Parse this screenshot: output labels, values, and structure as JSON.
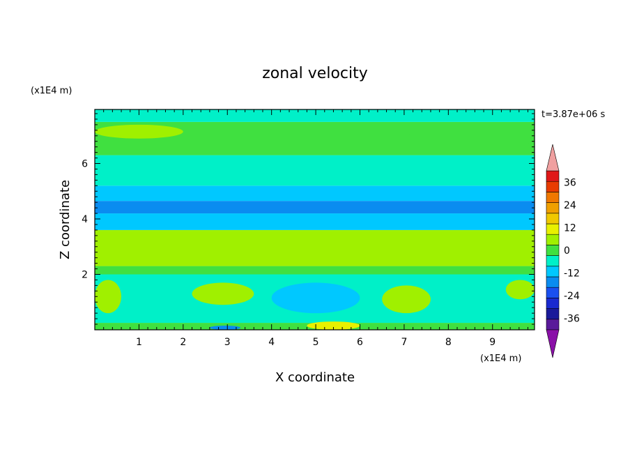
{
  "chart_data": {
    "type": "heatmap",
    "title": "zonal velocity",
    "xlabel": "X coordinate",
    "ylabel": "Z coordinate",
    "x_unit": "(x1E4 m)",
    "y_unit": "(x1E4 m)",
    "time_label": "t=3.87e+06 s",
    "xlim": [
      0,
      9.95
    ],
    "ylim": [
      0,
      7.95
    ],
    "x_ticks": [
      "1",
      "2",
      "3",
      "4",
      "5",
      "6",
      "7",
      "8",
      "9"
    ],
    "y_ticks": [
      "2",
      "4",
      "6"
    ],
    "colorbar": {
      "levels": [
        -42,
        -36,
        -30,
        -24,
        -18,
        -12,
        -6,
        0,
        6,
        12,
        18,
        24,
        30,
        36,
        42
      ],
      "colors": [
        "#5a1a9a",
        "#1a1a9a",
        "#1a2ad0",
        "#1a50f0",
        "#0a8cf0",
        "#00c8ff",
        "#00f0c8",
        "#40e040",
        "#a0f000",
        "#e8f000",
        "#f0c800",
        "#f0a000",
        "#f07800",
        "#e83c00",
        "#e01818"
      ],
      "under_color": "#8a10a8",
      "over_color": "#f0a0a0",
      "tick_labels": [
        "36",
        "24",
        "12",
        "0",
        "-12",
        "-24",
        "-36"
      ]
    },
    "field_bands_z": [
      {
        "z": [
          0.0,
          0.25
        ],
        "value": 4
      },
      {
        "z": [
          0.25,
          2.0
        ],
        "value": -2
      },
      {
        "z": [
          2.0,
          2.3
        ],
        "value": 3
      },
      {
        "z": [
          2.3,
          3.6
        ],
        "value": 10
      },
      {
        "z": [
          3.6,
          4.2
        ],
        "value": -7
      },
      {
        "z": [
          4.2,
          4.65
        ],
        "value": -14
      },
      {
        "z": [
          4.65,
          5.2
        ],
        "value": -8
      },
      {
        "z": [
          5.2,
          6.3
        ],
        "value": -1
      },
      {
        "z": [
          6.3,
          7.5
        ],
        "value": 2
      },
      {
        "z": [
          7.5,
          7.95
        ],
        "value": -6
      }
    ],
    "field_features": [
      {
        "x": [
          0.0,
          0.6
        ],
        "z": [
          0.6,
          1.8
        ],
        "value": 9
      },
      {
        "x": [
          2.2,
          3.6
        ],
        "z": [
          0.9,
          1.7
        ],
        "value": 9
      },
      {
        "x": [
          4.0,
          6.0
        ],
        "z": [
          0.6,
          1.7
        ],
        "value": -10
      },
      {
        "x": [
          6.5,
          7.6
        ],
        "z": [
          0.6,
          1.6
        ],
        "value": 7
      },
      {
        "x": [
          9.3,
          9.95
        ],
        "z": [
          1.1,
          1.8
        ],
        "value": 9
      },
      {
        "x": [
          4.8,
          6.0
        ],
        "z": [
          0.0,
          0.3
        ],
        "value": 13
      },
      {
        "x": [
          2.6,
          3.3
        ],
        "z": [
          0.0,
          0.15
        ],
        "value": -16
      },
      {
        "x": [
          0.0,
          2.0
        ],
        "z": [
          6.9,
          7.4
        ],
        "value": 8
      },
      {
        "x": [
          7.0,
          9.95
        ],
        "z": [
          6.5,
          7.3
        ],
        "value": 5
      }
    ]
  }
}
